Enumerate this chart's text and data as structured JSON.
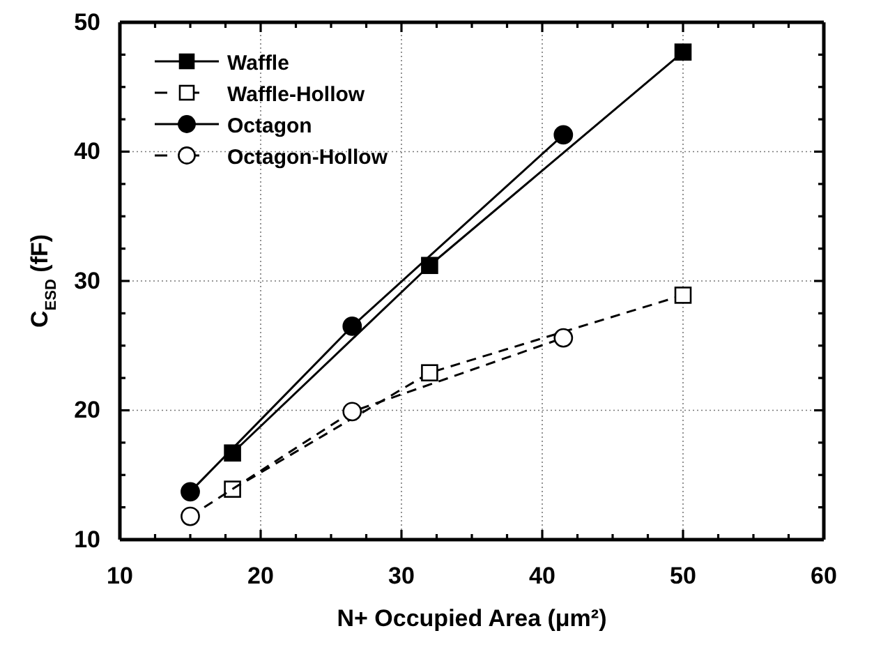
{
  "chart_data": {
    "type": "line",
    "xlabel": "N+ Occupied Area (μm²)",
    "ylabel": "C$_{ESD}$ (fF)",
    "xlim": [
      10,
      60
    ],
    "ylim": [
      10,
      50
    ],
    "xticks": [
      10,
      {
        "value": 12.5,
        "label": null
      },
      {
        "value": 15,
        "label": null
      },
      {
        "value": 17.5,
        "label": null
      },
      20,
      {
        "value": 22.5,
        "label": null
      },
      {
        "value": 25,
        "label": null
      },
      {
        "value": 27.5,
        "label": null
      },
      30,
      {
        "value": 32.5,
        "label": null
      },
      {
        "value": 35,
        "label": null
      },
      {
        "value": 37.5,
        "label": null
      },
      40,
      {
        "value": 42.5,
        "label": null
      },
      {
        "value": 45,
        "label": null
      },
      {
        "value": 47.5,
        "label": null
      },
      50,
      {
        "value": 52.5,
        "label": null
      },
      {
        "value": 55,
        "label": null
      },
      {
        "value": 57.5,
        "label": null
      },
      60
    ],
    "yticks": [
      10,
      {
        "value": 12.5,
        "label": null
      },
      {
        "value": 15,
        "label": null
      },
      {
        "value": 17.5,
        "label": null
      },
      20,
      {
        "value": 22.5,
        "label": null
      },
      {
        "value": 25,
        "label": null
      },
      {
        "value": 27.5,
        "label": null
      },
      30,
      {
        "value": 32.5,
        "label": null
      },
      {
        "value": 35,
        "label": null
      },
      {
        "value": 37.5,
        "label": null
      },
      40,
      {
        "value": 42.5,
        "label": null
      },
      {
        "value": 45,
        "label": null
      },
      {
        "value": 47.5,
        "label": null
      },
      50
    ],
    "grid": true,
    "legend": "top left",
    "series": [
      {
        "name": "Waffle",
        "color": "#000000",
        "marker": "square",
        "line_style": "solid",
        "x": [
          18,
          32,
          50
        ],
        "values": [
          16.7,
          31.2,
          47.7
        ]
      },
      {
        "name": "Waffle-Hollow",
        "color": "#000000",
        "marker": "square",
        "line_style": "dashed",
        "x": [
          18,
          32,
          50
        ],
        "values": [
          13.9,
          22.9,
          28.9
        ]
      },
      {
        "name": "Octagon",
        "color": "#000000",
        "marker": "circle",
        "line_style": "solid",
        "x": [
          15,
          26.5,
          41.5
        ],
        "values": [
          13.7,
          26.5,
          41.3
        ]
      },
      {
        "name": "Octagon-Hollow",
        "color": "#000000",
        "marker": "circle",
        "line_style": "dashed",
        "x": [
          15,
          26.5,
          41.5
        ],
        "values": [
          11.8,
          19.9,
          25.6
        ]
      }
    ]
  }
}
